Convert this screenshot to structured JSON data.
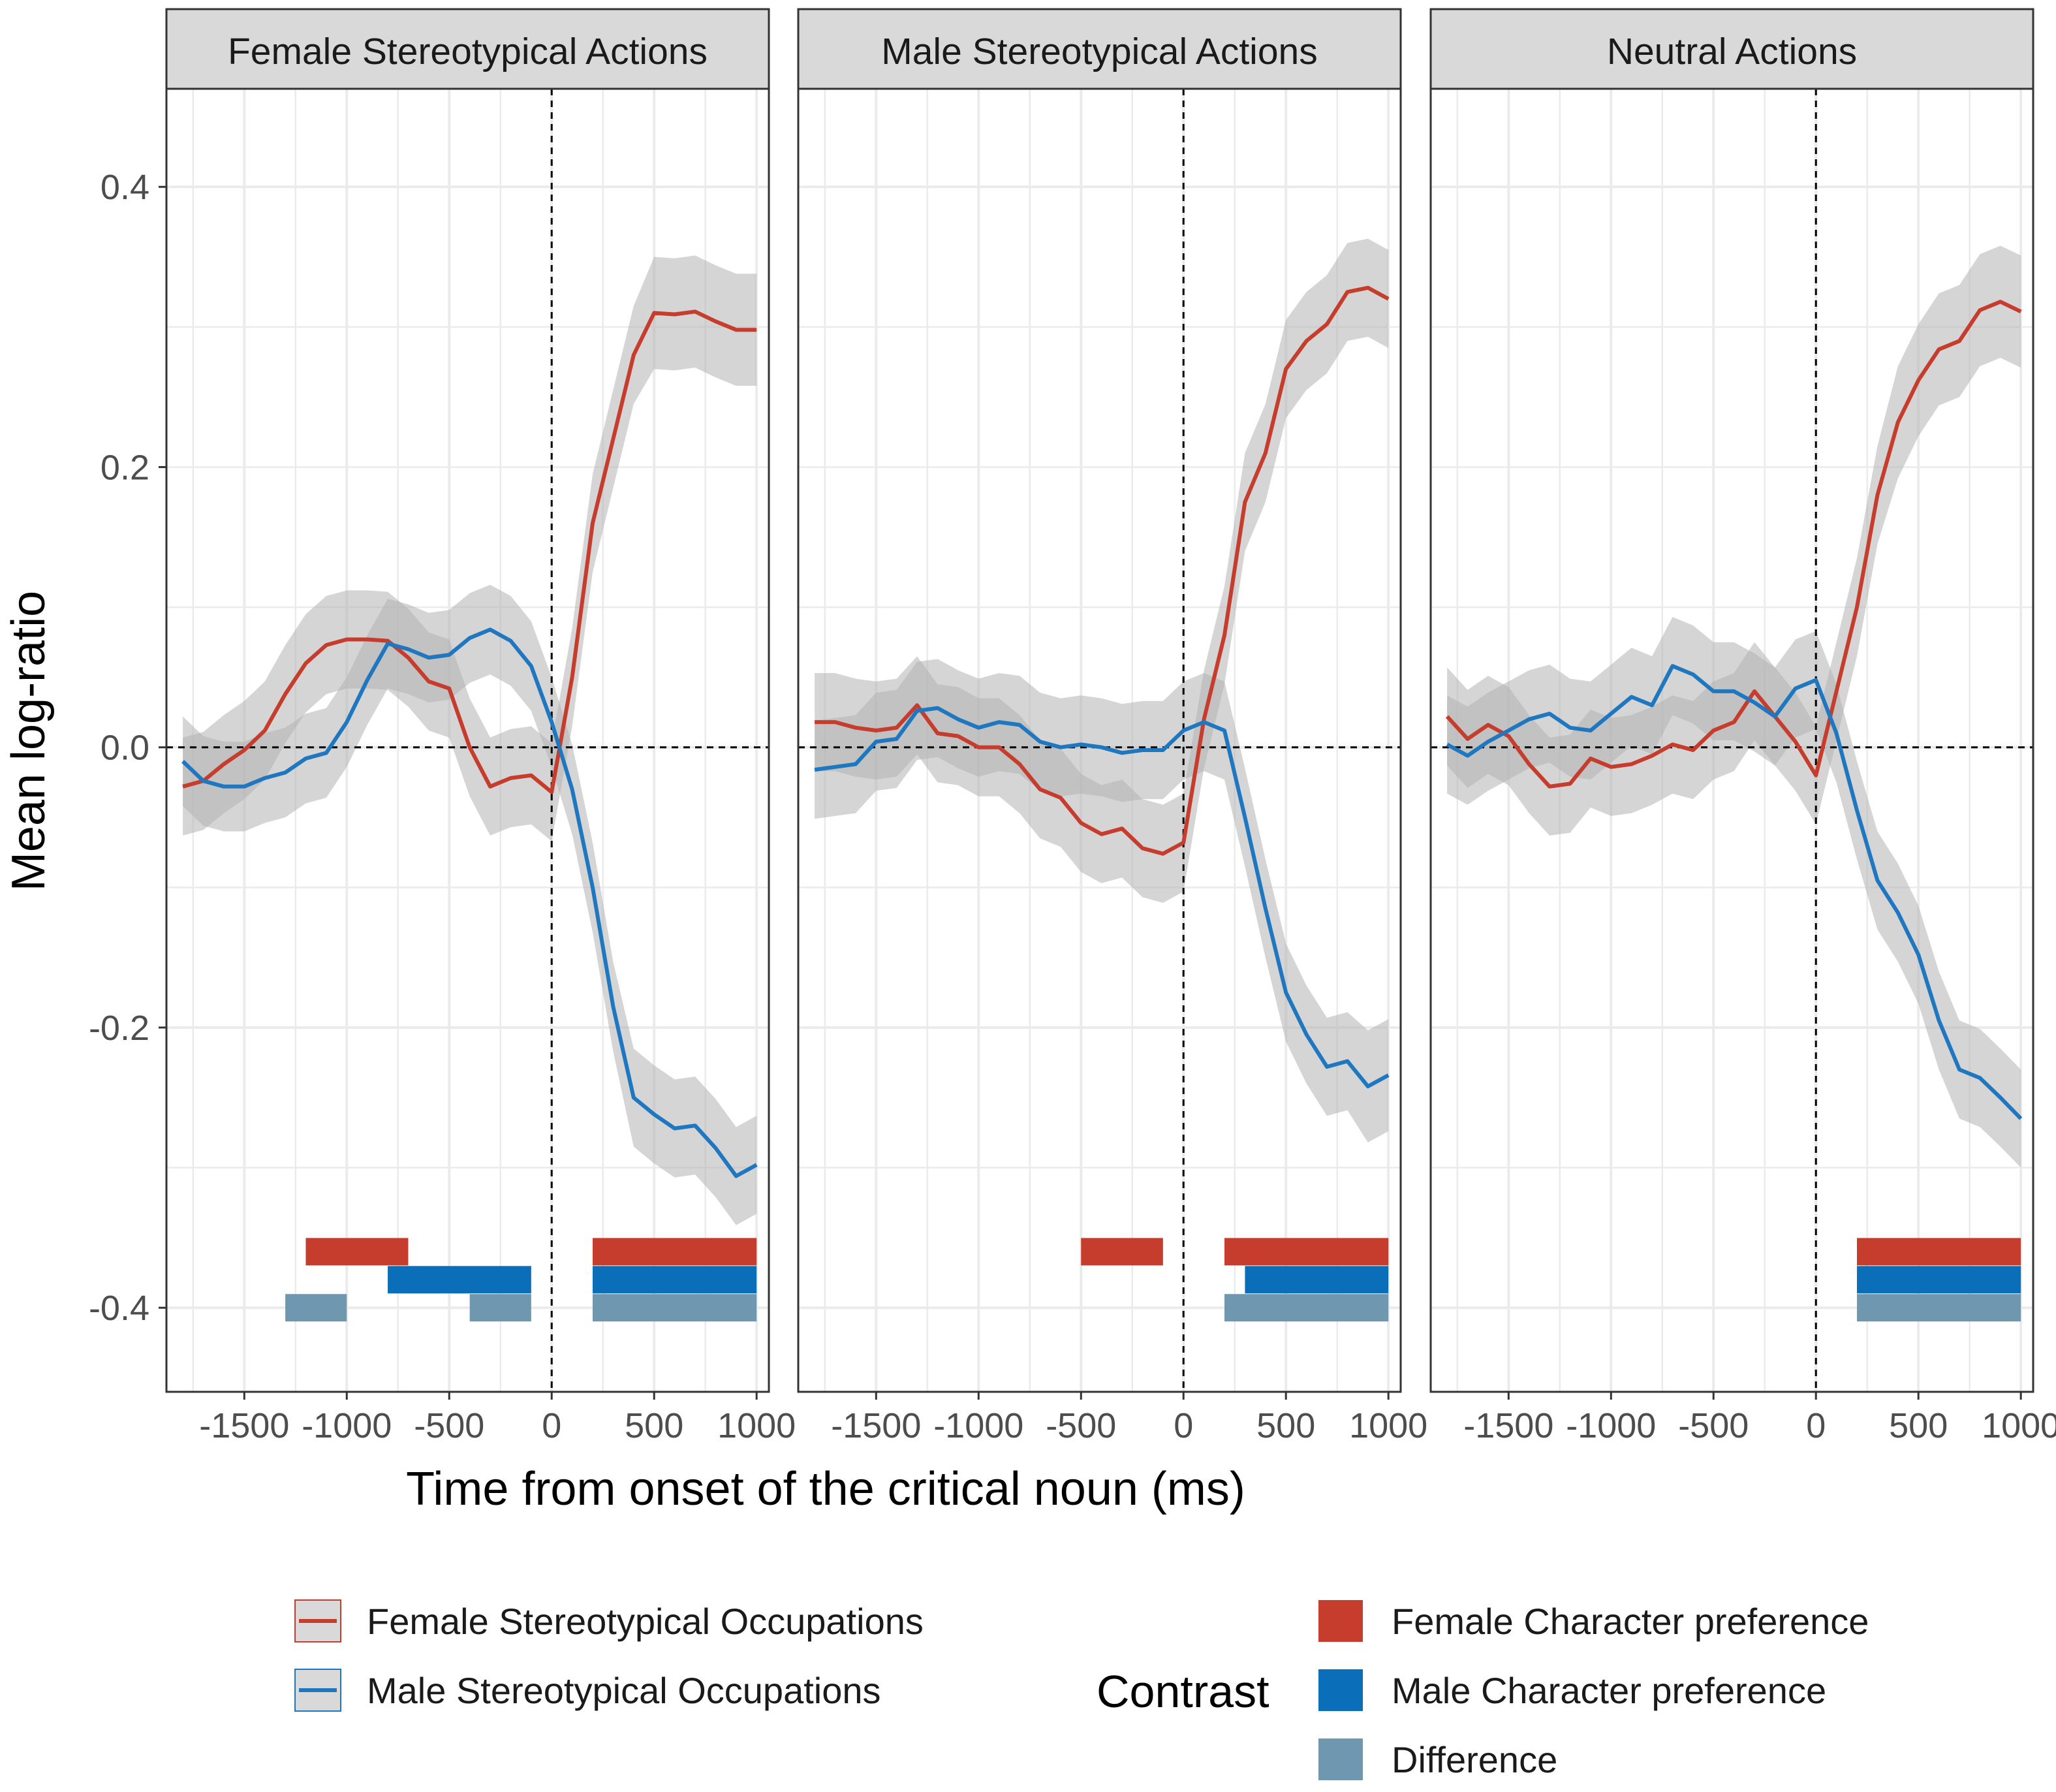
{
  "chart_data": {
    "type": "line",
    "ylabel": "Mean log-ratio",
    "xlabel": "Time from onset of the critical noun (ms)",
    "xlim": [
      -1880,
      1060
    ],
    "ylim": [
      -0.46,
      0.47
    ],
    "x_ticks": [
      -1500,
      -1000,
      -500,
      0,
      500,
      1000
    ],
    "x_tick_labels": [
      "-1500",
      "-1000",
      "-500",
      "0",
      "500",
      "1000"
    ],
    "y_ticks": [
      -0.4,
      -0.2,
      0.0,
      0.2,
      0.4
    ],
    "y_tick_labels": [
      "-0.4",
      "-0.2",
      "0.0",
      "0.2",
      "0.4"
    ],
    "reference_lines": {
      "vertical_x": 0,
      "horizontal_y": 0
    },
    "grid": true,
    "series_colors": {
      "female": "#c63c2d",
      "male": "#1f77c0"
    },
    "ribbon_color": "#b3b3b3",
    "bar_colors": {
      "female_pref": "#c63c2d",
      "male_pref": "#0a6fb8",
      "difference": "#6f98b0"
    },
    "panels": [
      {
        "title": "Female Stereotypical Actions",
        "series": [
          {
            "name": "Female Stereotypical Occupations",
            "x": [
              -1800,
              -1700,
              -1600,
              -1500,
              -1400,
              -1300,
              -1200,
              -1100,
              -1000,
              -900,
              -800,
              -700,
              -600,
              -500,
              -400,
              -300,
              -200,
              -100,
              0,
              100,
              200,
              300,
              400,
              500,
              600,
              700,
              800,
              900,
              1000
            ],
            "y": [
              -0.028,
              -0.024,
              -0.012,
              -0.002,
              0.012,
              0.038,
              0.06,
              0.073,
              0.077,
              0.077,
              0.076,
              0.064,
              0.047,
              0.042,
              0.0,
              -0.028,
              -0.022,
              -0.02,
              -0.032,
              0.05,
              0.16,
              0.22,
              0.28,
              0.31,
              0.309,
              0.311,
              0.304,
              0.298,
              0.298
            ],
            "ci": [
              0.035,
              0.035,
              0.035,
              0.035,
              0.035,
              0.035,
              0.035,
              0.035,
              0.035,
              0.035,
              0.035,
              0.035,
              0.035,
              0.035,
              0.035,
              0.035,
              0.035,
              0.035,
              0.035,
              0.035,
              0.035,
              0.035,
              0.035,
              0.04,
              0.04,
              0.04,
              0.04,
              0.04,
              0.04
            ]
          },
          {
            "name": "Male Stereotypical Occupations",
            "x": [
              -1800,
              -1700,
              -1600,
              -1500,
              -1400,
              -1300,
              -1200,
              -1100,
              -1000,
              -900,
              -800,
              -700,
              -600,
              -500,
              -400,
              -300,
              -200,
              -100,
              0,
              100,
              200,
              300,
              400,
              500,
              600,
              700,
              800,
              900,
              1000
            ],
            "y": [
              -0.01,
              -0.024,
              -0.028,
              -0.028,
              -0.022,
              -0.018,
              -0.008,
              -0.004,
              0.018,
              0.048,
              0.074,
              0.07,
              0.064,
              0.066,
              0.078,
              0.084,
              0.076,
              0.058,
              0.018,
              -0.03,
              -0.1,
              -0.185,
              -0.25,
              -0.262,
              -0.272,
              -0.27,
              -0.286,
              -0.306,
              -0.298
            ],
            "ci": [
              0.032,
              0.032,
              0.032,
              0.032,
              0.032,
              0.032,
              0.032,
              0.032,
              0.032,
              0.032,
              0.032,
              0.032,
              0.032,
              0.032,
              0.032,
              0.032,
              0.032,
              0.032,
              0.032,
              0.032,
              0.032,
              0.032,
              0.035,
              0.035,
              0.035,
              0.035,
              0.035,
              0.035,
              0.035
            ]
          }
        ],
        "bars": [
          {
            "contrast": "Female Character preference",
            "start": -1200,
            "end": -700
          },
          {
            "contrast": "Female Character preference",
            "start": 200,
            "end": 1000
          },
          {
            "contrast": "Male Character preference",
            "start": -800,
            "end": -100
          },
          {
            "contrast": "Male Character preference",
            "start": 200,
            "end": 1000
          },
          {
            "contrast": "Difference",
            "start": -1300,
            "end": -1000
          },
          {
            "contrast": "Difference",
            "start": -400,
            "end": -100
          },
          {
            "contrast": "Difference",
            "start": 200,
            "end": 1000
          }
        ]
      },
      {
        "title": "Male Stereotypical Actions",
        "series": [
          {
            "name": "Female Stereotypical Occupations",
            "x": [
              -1800,
              -1700,
              -1600,
              -1500,
              -1400,
              -1300,
              -1200,
              -1100,
              -1000,
              -900,
              -800,
              -700,
              -600,
              -500,
              -400,
              -300,
              -200,
              -100,
              0,
              100,
              200,
              300,
              400,
              500,
              600,
              700,
              800,
              900,
              1000
            ],
            "y": [
              0.018,
              0.018,
              0.014,
              0.012,
              0.014,
              0.03,
              0.01,
              0.008,
              0.0,
              0.0,
              -0.012,
              -0.03,
              -0.036,
              -0.054,
              -0.062,
              -0.058,
              -0.072,
              -0.076,
              -0.068,
              0.02,
              0.08,
              0.175,
              0.21,
              0.27,
              0.29,
              0.302,
              0.325,
              0.328,
              0.32
            ],
            "ci": [
              0.035,
              0.035,
              0.035,
              0.035,
              0.035,
              0.035,
              0.035,
              0.035,
              0.035,
              0.035,
              0.035,
              0.035,
              0.035,
              0.035,
              0.035,
              0.035,
              0.035,
              0.035,
              0.035,
              0.035,
              0.035,
              0.035,
              0.035,
              0.035,
              0.035,
              0.035,
              0.035,
              0.035,
              0.035
            ]
          },
          {
            "name": "Male Stereotypical Occupations",
            "x": [
              -1800,
              -1700,
              -1600,
              -1500,
              -1400,
              -1300,
              -1200,
              -1100,
              -1000,
              -900,
              -800,
              -700,
              -600,
              -500,
              -400,
              -300,
              -200,
              -100,
              0,
              100,
              200,
              300,
              400,
              500,
              600,
              700,
              800,
              900,
              1000
            ],
            "y": [
              -0.016,
              -0.014,
              -0.012,
              0.004,
              0.006,
              0.026,
              0.028,
              0.02,
              0.014,
              0.018,
              0.016,
              0.004,
              0.0,
              0.002,
              0.0,
              -0.004,
              -0.002,
              -0.002,
              0.012,
              0.018,
              0.012,
              -0.05,
              -0.115,
              -0.175,
              -0.205,
              -0.228,
              -0.224,
              -0.242,
              -0.234
            ],
            "ci": [
              0.035,
              0.035,
              0.035,
              0.035,
              0.035,
              0.035,
              0.035,
              0.035,
              0.035,
              0.035,
              0.035,
              0.035,
              0.035,
              0.035,
              0.035,
              0.035,
              0.035,
              0.035,
              0.035,
              0.035,
              0.035,
              0.035,
              0.035,
              0.035,
              0.035,
              0.035,
              0.035,
              0.04,
              0.04
            ]
          }
        ],
        "bars": [
          {
            "contrast": "Female Character preference",
            "start": -500,
            "end": -100
          },
          {
            "contrast": "Female Character preference",
            "start": 200,
            "end": 1000
          },
          {
            "contrast": "Male Character preference",
            "start": 300,
            "end": 1000
          },
          {
            "contrast": "Difference",
            "start": 200,
            "end": 1000
          }
        ]
      },
      {
        "title": "Neutral Actions",
        "series": [
          {
            "name": "Female Stereotypical Occupations",
            "x": [
              -1800,
              -1700,
              -1600,
              -1500,
              -1400,
              -1300,
              -1200,
              -1100,
              -1000,
              -900,
              -800,
              -700,
              -600,
              -500,
              -400,
              -300,
              -200,
              -100,
              0,
              100,
              200,
              300,
              400,
              500,
              600,
              700,
              800,
              900,
              1000
            ],
            "y": [
              0.022,
              0.006,
              0.016,
              0.008,
              -0.012,
              -0.028,
              -0.026,
              -0.008,
              -0.014,
              -0.012,
              -0.006,
              0.002,
              -0.002,
              0.012,
              0.018,
              0.04,
              0.022,
              0.004,
              -0.02,
              0.04,
              0.1,
              0.18,
              0.232,
              0.262,
              0.284,
              0.29,
              0.312,
              0.318,
              0.311
            ],
            "ci": [
              0.035,
              0.035,
              0.035,
              0.035,
              0.035,
              0.035,
              0.035,
              0.035,
              0.035,
              0.035,
              0.035,
              0.035,
              0.035,
              0.035,
              0.035,
              0.035,
              0.035,
              0.035,
              0.035,
              0.035,
              0.035,
              0.035,
              0.04,
              0.04,
              0.04,
              0.04,
              0.04,
              0.04,
              0.04
            ]
          },
          {
            "name": "Male Stereotypical Occupations",
            "x": [
              -1800,
              -1700,
              -1600,
              -1500,
              -1400,
              -1300,
              -1200,
              -1100,
              -1000,
              -900,
              -800,
              -700,
              -600,
              -500,
              -400,
              -300,
              -200,
              -100,
              0,
              100,
              200,
              300,
              400,
              500,
              600,
              700,
              800,
              900,
              1000
            ],
            "y": [
              0.002,
              -0.006,
              0.004,
              0.012,
              0.02,
              0.024,
              0.014,
              0.012,
              0.024,
              0.036,
              0.03,
              0.058,
              0.052,
              0.04,
              0.04,
              0.032,
              0.022,
              0.042,
              0.048,
              0.01,
              -0.045,
              -0.095,
              -0.118,
              -0.148,
              -0.195,
              -0.23,
              -0.236,
              -0.25,
              -0.265
            ],
            "ci": [
              0.035,
              0.035,
              0.035,
              0.035,
              0.035,
              0.035,
              0.035,
              0.035,
              0.035,
              0.035,
              0.035,
              0.035,
              0.035,
              0.035,
              0.035,
              0.035,
              0.035,
              0.035,
              0.035,
              0.035,
              0.035,
              0.035,
              0.035,
              0.035,
              0.035,
              0.035,
              0.035,
              0.035,
              0.035
            ]
          }
        ],
        "bars": [
          {
            "contrast": "Female Character preference",
            "start": 200,
            "end": 1000
          },
          {
            "contrast": "Male Character preference",
            "start": 200,
            "end": 1000
          },
          {
            "contrast": "Difference",
            "start": 200,
            "end": 1000
          }
        ]
      }
    ],
    "legend": {
      "series_entries": [
        "Female Stereotypical Occupations",
        "Male Stereotypical Occupations"
      ],
      "contrast_title": "Contrast",
      "contrast_entries": [
        "Female Character preference",
        "Male Character preference",
        "Difference"
      ],
      "placement": "bottom"
    }
  }
}
